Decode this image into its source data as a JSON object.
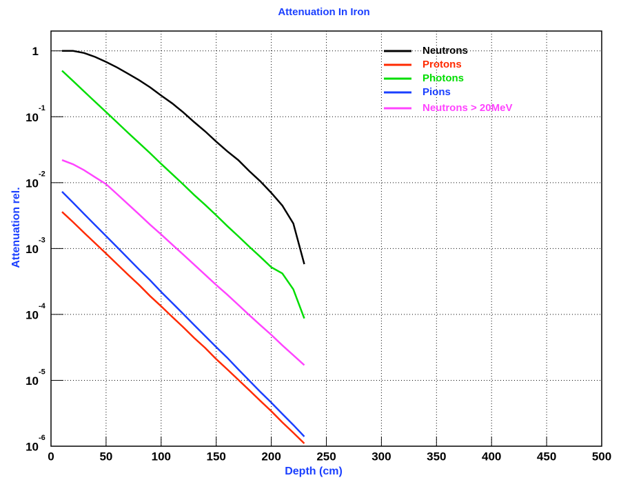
{
  "chart_data": {
    "type": "line",
    "title": "Attenuation In Iron",
    "x_label": "Depth (cm)",
    "y_label": "Attenuation rel.",
    "log_y": true,
    "grid": true,
    "legend": "top-right",
    "xlim": [
      0,
      500
    ],
    "xticks": [
      0,
      50,
      100,
      150,
      200,
      250,
      300,
      350,
      400,
      450,
      500
    ],
    "ylim": [
      1e-06,
      2
    ],
    "yticks": [
      1,
      {
        "value": 0.1,
        "label": "10",
        "sup": "-1"
      },
      {
        "value": 0.01,
        "label": "10",
        "sup": "-2"
      },
      {
        "value": 0.001,
        "label": "10",
        "sup": "-3"
      },
      {
        "value": 0.0001,
        "label": "10",
        "sup": "-4"
      },
      {
        "value": 1e-05,
        "label": "10",
        "sup": "-5"
      },
      {
        "value": 1e-06,
        "label": "10",
        "sup": "-6"
      }
    ],
    "x": [
      10,
      20,
      30,
      40,
      50,
      60,
      70,
      80,
      90,
      100,
      110,
      120,
      130,
      140,
      150,
      160,
      170,
      180,
      190,
      200,
      210,
      220,
      230
    ],
    "series": [
      {
        "name": "Neutrons",
        "color": "#000000",
        "values": [
          1.0,
          1.0,
          0.93,
          0.81,
          0.68,
          0.56,
          0.45,
          0.36,
          0.28,
          0.21,
          0.16,
          0.117,
          0.083,
          0.06,
          0.042,
          0.03,
          0.022,
          0.015,
          0.0105,
          0.007,
          0.0045,
          0.0024,
          0.00058
        ]
      },
      {
        "name": "Protons",
        "color": "#ff2a00",
        "values": [
          0.0036,
          0.00252,
          0.00174,
          0.00121,
          0.00084,
          0.00058,
          0.0004,
          0.00028,
          0.00019,
          0.000133,
          9.2e-05,
          6.4e-05,
          4.4e-05,
          3.1e-05,
          2.1e-05,
          1.47e-05,
          1.02e-05,
          7.1e-06,
          4.9e-06,
          3.4e-06,
          2.3e-06,
          1.6e-06,
          1.1e-06
        ]
      },
      {
        "name": "Photons",
        "color": "#00dd00",
        "values": [
          0.5,
          0.349,
          0.243,
          0.169,
          0.118,
          0.082,
          0.057,
          0.04,
          0.028,
          0.0193,
          0.0135,
          0.0094,
          0.0065,
          0.0046,
          0.0032,
          0.0022,
          0.00154,
          0.00107,
          0.00075,
          0.00052,
          0.00042,
          0.00024,
          8.7e-05
        ]
      },
      {
        "name": "Pions",
        "color": "#1a3fff",
        "values": [
          0.0073,
          0.00496,
          0.00336,
          0.00228,
          0.00155,
          0.00105,
          0.00071,
          0.00048,
          0.00033,
          0.00022,
          0.00015,
          0.000102,
          6.9e-05,
          4.7e-05,
          3.2e-05,
          2.2e-05,
          1.47e-05,
          9.95e-06,
          6.7e-06,
          4.6e-06,
          3.1e-06,
          2.1e-06,
          1.4e-06
        ]
      },
      {
        "name": "Neutrons > 20MeV",
        "color": "#ff44ff",
        "values": [
          0.022,
          0.019,
          0.0155,
          0.0121,
          0.0095,
          0.0067,
          0.0047,
          0.0033,
          0.0023,
          0.00164,
          0.00115,
          0.00081,
          0.00057,
          0.0004,
          0.00028,
          0.0002,
          0.00014,
          9.8e-05,
          6.9e-05,
          4.9e-05,
          3.4e-05,
          2.4e-05,
          1.7e-05
        ]
      }
    ]
  }
}
